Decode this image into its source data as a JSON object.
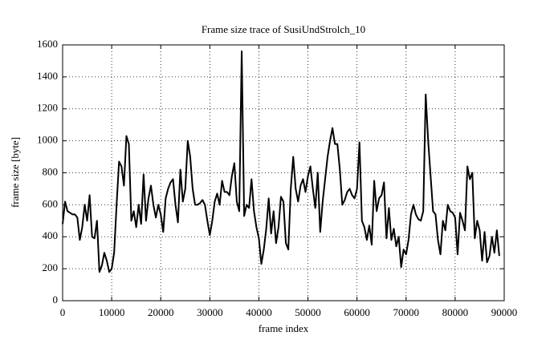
{
  "chart_data": {
    "type": "line",
    "title": "Frame size trace of SusiUndStrolch_10",
    "x_label": "frame index",
    "y_label": "frame size [byte]",
    "xlim": [
      0,
      90000
    ],
    "ylim": [
      0,
      1600
    ],
    "xticks": [
      0,
      10000,
      20000,
      30000,
      40000,
      50000,
      60000,
      70000,
      80000,
      90000
    ],
    "yticks": [
      0,
      200,
      400,
      600,
      800,
      1000,
      1200,
      1400,
      1600
    ],
    "grid": true,
    "x": [
      0,
      500,
      1000,
      1500,
      2000,
      2500,
      3000,
      3500,
      4000,
      4500,
      5000,
      5500,
      6000,
      6500,
      7000,
      7500,
      8000,
      8500,
      9000,
      9500,
      10000,
      10500,
      11000,
      11500,
      12000,
      12500,
      13000,
      13500,
      14000,
      14500,
      15000,
      15500,
      16000,
      16500,
      17000,
      17500,
      18000,
      18500,
      19000,
      19500,
      20000,
      20500,
      21000,
      21500,
      22000,
      22500,
      23000,
      23500,
      24000,
      24500,
      25000,
      25500,
      26000,
      26500,
      27000,
      27500,
      28000,
      28500,
      29000,
      29500,
      30000,
      30500,
      31000,
      31500,
      32000,
      32500,
      33000,
      33500,
      34000,
      34500,
      35000,
      35500,
      36000,
      36500,
      37000,
      37500,
      38000,
      38500,
      39000,
      39500,
      40000,
      40500,
      41000,
      41500,
      42000,
      42500,
      43000,
      43500,
      44000,
      44500,
      45000,
      45500,
      46000,
      46500,
      47000,
      47500,
      48000,
      48500,
      49000,
      49500,
      50000,
      50500,
      51000,
      51500,
      52000,
      52500,
      53000,
      53500,
      54000,
      54500,
      55000,
      55500,
      56000,
      56500,
      57000,
      57500,
      58000,
      58500,
      59000,
      59500,
      60000,
      60500,
      61000,
      61500,
      62000,
      62500,
      63000,
      63500,
      64000,
      64500,
      65000,
      65500,
      66000,
      66500,
      67000,
      67500,
      68000,
      68500,
      69000,
      69500,
      70000,
      70500,
      71000,
      71500,
      72000,
      72500,
      73000,
      73500,
      74000,
      74500,
      75000,
      75500,
      76000,
      76500,
      77000,
      77500,
      78000,
      78500,
      79000,
      79500,
      80000,
      80500,
      81000,
      81500,
      82000,
      82500,
      83000,
      83500,
      84000,
      84500,
      85000,
      85500,
      86000,
      86500,
      87000,
      87500,
      88000,
      88500,
      89000
    ],
    "series": [
      {
        "name": "frame size",
        "color": "#000000",
        "values": [
          480,
          620,
          560,
          550,
          540,
          540,
          520,
          380,
          460,
          600,
          500,
          660,
          400,
          390,
          500,
          180,
          220,
          300,
          250,
          180,
          200,
          300,
          600,
          870,
          840,
          720,
          1030,
          980,
          500,
          560,
          460,
          600,
          480,
          790,
          500,
          640,
          720,
          600,
          520,
          600,
          540,
          430,
          640,
          700,
          740,
          760,
          600,
          490,
          820,
          620,
          700,
          1000,
          900,
          700,
          600,
          600,
          610,
          630,
          600,
          500,
          410,
          500,
          620,
          670,
          600,
          750,
          680,
          680,
          660,
          780,
          860,
          620,
          560,
          1560,
          530,
          600,
          580,
          760,
          560,
          460,
          390,
          230,
          320,
          450,
          640,
          420,
          560,
          360,
          460,
          650,
          620,
          360,
          320,
          700,
          900,
          700,
          620,
          720,
          760,
          680,
          780,
          840,
          700,
          580,
          800,
          430,
          620,
          760,
          900,
          1000,
          1080,
          980,
          980,
          820,
          600,
          630,
          680,
          700,
          660,
          640,
          700,
          990,
          500,
          460,
          380,
          470,
          350,
          750,
          560,
          640,
          660,
          740,
          390,
          580,
          380,
          450,
          340,
          400,
          210,
          320,
          290,
          380,
          540,
          600,
          540,
          510,
          500,
          560,
          1290,
          1000,
          780,
          560,
          540,
          380,
          290,
          500,
          440,
          600,
          560,
          550,
          520,
          290,
          550,
          500,
          440,
          840,
          760,
          800,
          390,
          500,
          440,
          250,
          430,
          240,
          280,
          400,
          300,
          440,
          280
        ]
      }
    ]
  }
}
